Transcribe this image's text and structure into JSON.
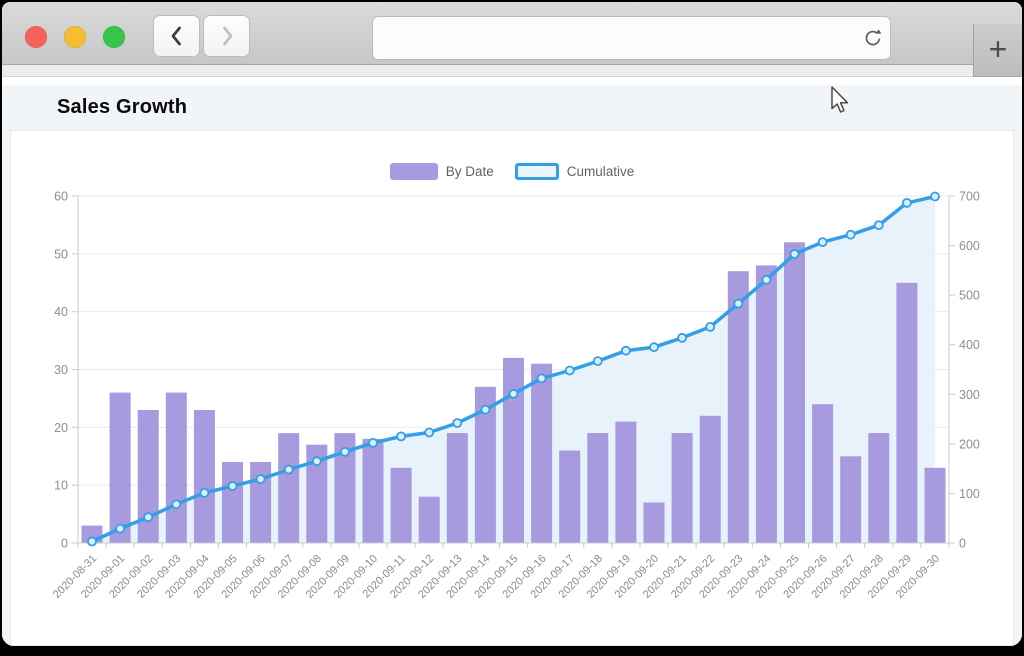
{
  "browser": {
    "url_value": "",
    "new_tab_label": "+",
    "traffic_lights": {
      "close": "#f6615b",
      "minimize": "#f6bd31",
      "zoom": "#35c649"
    }
  },
  "page": {
    "title": "Sales Growth"
  },
  "colors": {
    "bar": "#a79ade",
    "line": "#339fe5",
    "area": "#e7f2fb",
    "marker_fill": "#ddeefb",
    "legend_line_fill": "#eaf4fc",
    "grid": "#e9e9e9",
    "axis_line": "#cccccc"
  },
  "chart_data": {
    "type": "bar",
    "title": "Sales Growth",
    "legend_position": "top-center",
    "grid": true,
    "categories": [
      "2020-08-31",
      "2020-09-01",
      "2020-09-02",
      "2020-09-03",
      "2020-09-04",
      "2020-09-05",
      "2020-09-06",
      "2020-09-07",
      "2020-09-08",
      "2020-09-09",
      "2020-09-10",
      "2020-09-11",
      "2020-09-12",
      "2020-09-13",
      "2020-09-14",
      "2020-09-15",
      "2020-09-16",
      "2020-09-17",
      "2020-09-18",
      "2020-09-19",
      "2020-09-20",
      "2020-09-21",
      "2020-09-22",
      "2020-09-23",
      "2020-09-24",
      "2020-09-25",
      "2020-09-26",
      "2020-09-27",
      "2020-09-28",
      "2020-09-29",
      "2020-09-30"
    ],
    "series": [
      {
        "name": "By Date",
        "type": "bar",
        "axis": "left",
        "values": [
          3,
          26,
          23,
          26,
          23,
          14,
          14,
          19,
          17,
          19,
          18,
          13,
          8,
          19,
          27,
          32,
          31,
          16,
          19,
          21,
          7,
          19,
          22,
          47,
          48,
          52,
          24,
          15,
          19,
          45,
          13
        ]
      },
      {
        "name": "Cumulative",
        "type": "line",
        "axis": "right",
        "values": [
          3,
          29,
          52,
          78,
          101,
          115,
          129,
          148,
          165,
          184,
          202,
          215,
          223,
          242,
          269,
          301,
          332,
          348,
          367,
          388,
          395,
          414,
          436,
          483,
          531,
          583,
          607,
          622,
          641,
          686,
          699
        ]
      }
    ],
    "left_axis": {
      "min": 0,
      "max": 60,
      "ticks": [
        0,
        10,
        20,
        30,
        40,
        50,
        60
      ]
    },
    "right_axis": {
      "min": 0,
      "max": 700,
      "ticks": [
        0,
        100,
        200,
        300,
        400,
        500,
        600,
        700
      ]
    }
  }
}
